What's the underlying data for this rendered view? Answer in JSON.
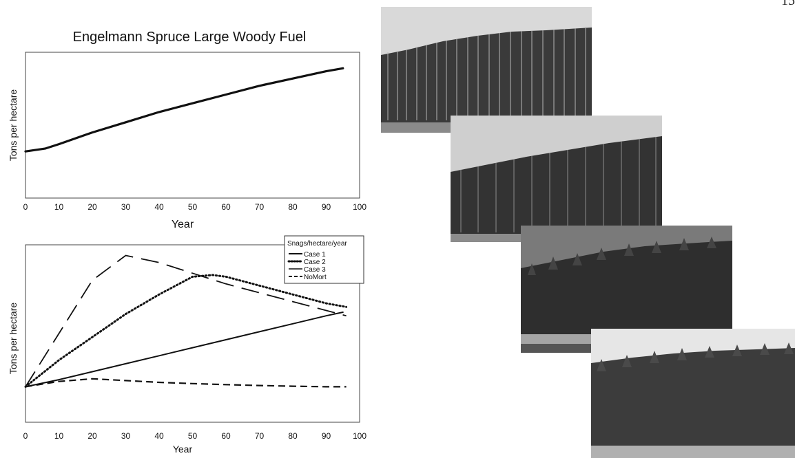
{
  "page": {
    "number": "15"
  },
  "chart_data": [
    {
      "type": "line",
      "title": "Engelmann Spruce Large Woody Fuel",
      "xlabel": "Year",
      "ylabel": "Tons per hectare",
      "xlim": [
        0,
        100
      ],
      "xticks": [
        "0",
        "10",
        "20",
        "30",
        "40",
        "50",
        "60",
        "70",
        "80",
        "90",
        "100"
      ],
      "ylim": [
        0,
        1
      ],
      "grid": false,
      "series": [
        {
          "style": "solid-thick",
          "points": [
            [
              0,
              0.32
            ],
            [
              6,
              0.34
            ],
            [
              10,
              0.37
            ],
            [
              20,
              0.45
            ],
            [
              30,
              0.52
            ],
            [
              40,
              0.59
            ],
            [
              50,
              0.65
            ],
            [
              60,
              0.71
            ],
            [
              70,
              0.77
            ],
            [
              80,
              0.82
            ],
            [
              90,
              0.87
            ],
            [
              95,
              0.89
            ]
          ]
        }
      ]
    },
    {
      "type": "line",
      "xlabel": "Year",
      "ylabel": "Tons per hectare",
      "xlim": [
        0,
        100
      ],
      "xticks": [
        "0",
        "10",
        "20",
        "30",
        "40",
        "50",
        "60",
        "70",
        "80",
        "90",
        "100"
      ],
      "ylim": [
        0,
        1
      ],
      "grid": false,
      "legend": {
        "title": "Snags/hectare/year",
        "placement": "top-right"
      },
      "series": [
        {
          "name": "Case 1",
          "style": "solid",
          "points": [
            [
              0,
              0.2
            ],
            [
              10,
              0.24
            ],
            [
              20,
              0.285
            ],
            [
              30,
              0.33
            ],
            [
              40,
              0.375
            ],
            [
              50,
              0.42
            ],
            [
              60,
              0.465
            ],
            [
              70,
              0.51
            ],
            [
              80,
              0.555
            ],
            [
              90,
              0.6
            ],
            [
              95,
              0.62
            ]
          ]
        },
        {
          "name": "Case 2",
          "style": "dotted",
          "points": [
            [
              0,
              0.2
            ],
            [
              10,
              0.35
            ],
            [
              20,
              0.48
            ],
            [
              30,
              0.61
            ],
            [
              40,
              0.72
            ],
            [
              50,
              0.82
            ],
            [
              56,
              0.83
            ],
            [
              60,
              0.82
            ],
            [
              70,
              0.77
            ],
            [
              80,
              0.72
            ],
            [
              90,
              0.67
            ],
            [
              96,
              0.65
            ]
          ]
        },
        {
          "name": "Case 3",
          "style": "long-dash",
          "points": [
            [
              0,
              0.2
            ],
            [
              10,
              0.5
            ],
            [
              20,
              0.8
            ],
            [
              30,
              0.94
            ],
            [
              40,
              0.9
            ],
            [
              50,
              0.84
            ],
            [
              60,
              0.78
            ],
            [
              70,
              0.73
            ],
            [
              80,
              0.68
            ],
            [
              90,
              0.63
            ],
            [
              96,
              0.6
            ]
          ]
        },
        {
          "name": "NoMort",
          "style": "dashed",
          "points": [
            [
              0,
              0.2
            ],
            [
              10,
              0.23
            ],
            [
              20,
              0.245
            ],
            [
              30,
              0.235
            ],
            [
              40,
              0.225
            ],
            [
              50,
              0.218
            ],
            [
              60,
              0.212
            ],
            [
              70,
              0.207
            ],
            [
              80,
              0.203
            ],
            [
              90,
              0.2
            ],
            [
              96,
              0.2
            ]
          ]
        }
      ]
    }
  ],
  "photos": [
    {
      "name": "forest-photo-1",
      "sky": "#d9d9d9",
      "canopy": "#3a3a3a",
      "ground": "#8a8a8a"
    },
    {
      "name": "forest-photo-2",
      "sky": "#cfcfcf",
      "canopy": "#333333",
      "ground": "#8c8c8c"
    },
    {
      "name": "forest-photo-3",
      "sky": "#7a7a7a",
      "canopy": "#2e2e2e",
      "ground": "#a5a5a5"
    },
    {
      "name": "forest-photo-4",
      "sky": "#e6e6e6",
      "canopy": "#3c3c3c",
      "ground": "#b0b0b0"
    }
  ]
}
